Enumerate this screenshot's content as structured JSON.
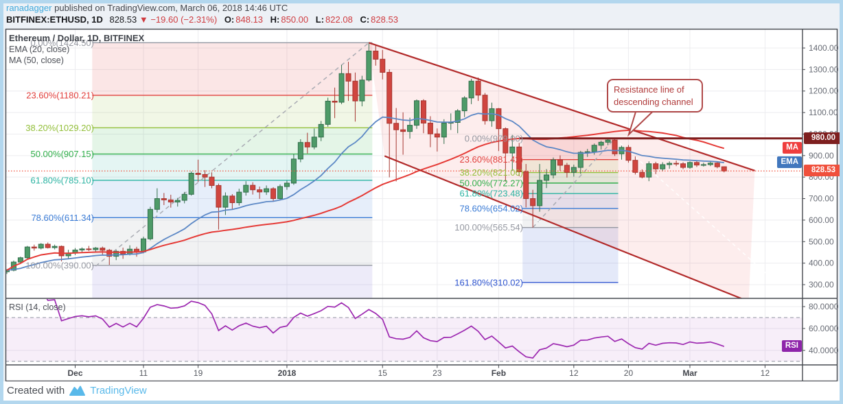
{
  "header": {
    "author": "ranadagger",
    "published_text": " published on TradingView.com, March 06, 2018 14:46 UTC",
    "symbol": "BITFINEX:ETHUSD, 1D",
    "last": "828.53",
    "change": "▼ −19.60 (−2.31%)",
    "ohlc": [
      {
        "label": "O:",
        "value": "848.13"
      },
      {
        "label": "H:",
        "value": "850.00"
      },
      {
        "label": "L:",
        "value": "822.08"
      },
      {
        "label": "C:",
        "value": "828.53"
      }
    ]
  },
  "legend": {
    "title": "Ethereum / Dollar, 1D, BITFINEX",
    "ema": "EMA (20, close)",
    "ma": "MA (50, close)"
  },
  "rsi_legend": "RSI (14, close)",
  "annotation": {
    "line1": "Resistance line of",
    "line2": "descending channel"
  },
  "axis_badges": {
    "ma": "MA",
    "ema": "EMA",
    "rsi": "RSI",
    "price_line": "980.00",
    "last_price": "828.53"
  },
  "footer": {
    "created_with": "Created with",
    "brand": "TradingView"
  },
  "colors": {
    "up_fill": "#4e9b68",
    "up_stroke": "#336e4c",
    "down_fill": "#d0453f",
    "down_stroke": "#a63630",
    "ema_line": "#5b87c5",
    "ma_line": "#e53935",
    "channel_line": "#b22a2a",
    "channel_fill": "rgba(239,83,80,0.10)",
    "ray_980": "#7e1f1f",
    "last_price_line": "#f1523f",
    "rsi_line": "#9c27b0",
    "rsi_band_fill": "rgba(156,39,176,0.08)",
    "grid": "#ececef",
    "frame": "#474a50",
    "gray_dash": "#a9abb3",
    "white_dash": "rgba(255,255,255,0.85)",
    "fib_ext_band": "#6a5acd"
  },
  "chart_data": {
    "type": "candlestick",
    "symbol": "BITFINEX:ETHUSD",
    "interval": "1D",
    "start_date": "2017-11-21",
    "end_date": "2018-03-06",
    "price_axis": {
      "ticks": [
        1400,
        1300,
        1200,
        1100,
        1000,
        900,
        800,
        700,
        600,
        500,
        400,
        300
      ],
      "ylim": [
        240,
        1489
      ]
    },
    "x_ticks": [
      {
        "label": "Dec",
        "index": 10,
        "major": true
      },
      {
        "label": "11",
        "index": 20,
        "major": false
      },
      {
        "label": "19",
        "index": 28,
        "major": false
      },
      {
        "label": "2018",
        "index": 41,
        "major": true
      },
      {
        "label": "15",
        "index": 55,
        "major": false
      },
      {
        "label": "23",
        "index": 63,
        "major": false
      },
      {
        "label": "Feb",
        "index": 72,
        "major": true
      },
      {
        "label": "12",
        "index": 83,
        "major": false
      },
      {
        "label": "20",
        "index": 91,
        "major": false
      },
      {
        "label": "Mar",
        "index": 100,
        "major": true
      },
      {
        "label": "12",
        "index": 111,
        "major": false
      }
    ],
    "candles": [
      [
        360,
        372,
        350,
        367
      ],
      [
        367,
        412,
        362,
        405
      ],
      [
        405,
        430,
        398,
        425
      ],
      [
        425,
        480,
        420,
        475
      ],
      [
        475,
        486,
        458,
        470
      ],
      [
        470,
        493,
        464,
        488
      ],
      [
        488,
        496,
        468,
        472
      ],
      [
        472,
        486,
        464,
        478
      ],
      [
        478,
        482,
        408,
        434
      ],
      [
        434,
        462,
        420,
        447
      ],
      [
        447,
        470,
        438,
        461
      ],
      [
        461,
        473,
        450,
        466
      ],
      [
        466,
        480,
        456,
        463
      ],
      [
        463,
        475,
        452,
        470
      ],
      [
        470,
        477,
        440,
        460
      ],
      [
        460,
        466,
        392,
        432
      ],
      [
        432,
        461,
        414,
        455
      ],
      [
        455,
        472,
        420,
        442
      ],
      [
        442,
        483,
        436,
        465
      ],
      [
        465,
        476,
        430,
        452
      ],
      [
        452,
        523,
        446,
        513
      ],
      [
        513,
        662,
        506,
        650
      ],
      [
        650,
        748,
        636,
        700
      ],
      [
        700,
        726,
        670,
        694
      ],
      [
        694,
        718,
        658,
        684
      ],
      [
        684,
        703,
        663,
        692
      ],
      [
        692,
        731,
        678,
        720
      ],
      [
        720,
        826,
        714,
        818
      ],
      [
        818,
        881,
        778,
        812
      ],
      [
        812,
        832,
        754,
        800
      ],
      [
        800,
        822,
        748,
        761
      ],
      [
        761,
        770,
        556,
        660
      ],
      [
        660,
        729,
        624,
        712
      ],
      [
        712,
        721,
        649,
        681
      ],
      [
        681,
        746,
        668,
        730
      ],
      [
        730,
        781,
        714,
        762
      ],
      [
        762,
        776,
        719,
        741
      ],
      [
        741,
        756,
        699,
        731
      ],
      [
        731,
        761,
        717,
        746
      ],
      [
        746,
        753,
        689,
        700
      ],
      [
        700,
        766,
        694,
        756
      ],
      [
        756,
        783,
        741,
        772
      ],
      [
        772,
        906,
        764,
        884
      ],
      [
        884,
        976,
        869,
        961
      ],
      [
        961,
        1006,
        910,
        940
      ],
      [
        940,
        1026,
        929,
        986
      ],
      [
        986,
        1061,
        967,
        1045
      ],
      [
        1045,
        1169,
        1034,
        1153
      ],
      [
        1153,
        1216,
        1074,
        1148
      ],
      [
        1148,
        1321,
        1139,
        1281
      ],
      [
        1281,
        1336,
        1154,
        1246
      ],
      [
        1246,
        1286,
        1058,
        1154
      ],
      [
        1154,
        1271,
        1129,
        1251
      ],
      [
        1251,
        1424.5,
        1244,
        1386
      ],
      [
        1386,
        1416,
        1318,
        1348
      ],
      [
        1348,
        1391,
        1254,
        1287
      ],
      [
        1287,
        1301,
        799,
        1050
      ],
      [
        1050,
        1121,
        780,
        1020
      ],
      [
        1020,
        1101,
        904,
        1012
      ],
      [
        1012,
        1076,
        979,
        1041
      ],
      [
        1041,
        1161,
        1024,
        1155
      ],
      [
        1155,
        1162,
        1004,
        1051
      ],
      [
        1051,
        1083,
        939,
        1001
      ],
      [
        1001,
        1026,
        919,
        986
      ],
      [
        986,
        1069,
        954,
        1051
      ],
      [
        1051,
        1096,
        1019,
        1054
      ],
      [
        1054,
        1116,
        1004,
        1108
      ],
      [
        1108,
        1176,
        1079,
        1168
      ],
      [
        1168,
        1257,
        1139,
        1246
      ],
      [
        1246,
        1263,
        1154,
        1181
      ],
      [
        1181,
        1191,
        1044,
        1062
      ],
      [
        1062,
        1146,
        1034,
        1118
      ],
      [
        1118,
        1121,
        921,
        1025
      ],
      [
        1025,
        1031,
        779,
        912
      ],
      [
        912,
        996,
        829,
        940
      ],
      [
        940,
        959,
        804,
        825
      ],
      [
        825,
        861,
        659,
        700
      ],
      [
        700,
        741,
        565,
        667
      ],
      [
        667,
        861,
        639,
        785
      ],
      [
        785,
        837,
        749,
        810
      ],
      [
        810,
        891,
        794,
        880
      ],
      [
        880,
        901,
        829,
        855
      ],
      [
        855,
        866,
        798,
        822
      ],
      [
        822,
        858,
        802,
        845
      ],
      [
        845,
        922,
        815,
        915
      ],
      [
        915,
        931,
        894,
        918
      ],
      [
        918,
        956,
        904,
        948
      ],
      [
        948,
        969,
        928,
        962
      ],
      [
        962,
        979,
        948,
        972
      ],
      [
        972,
        979,
        898,
        908
      ],
      [
        908,
        946,
        881,
        938
      ],
      [
        938,
        949,
        867,
        878
      ],
      [
        878,
        896,
        812,
        822
      ],
      [
        822,
        836,
        794,
        800
      ],
      [
        800,
        873,
        781,
        862
      ],
      [
        862,
        871,
        814,
        838
      ],
      [
        838,
        869,
        827,
        858
      ],
      [
        858,
        873,
        839,
        864
      ],
      [
        864,
        877,
        851,
        862
      ],
      [
        862,
        869,
        837,
        845
      ],
      [
        845,
        873,
        839,
        868
      ],
      [
        868,
        875,
        847,
        856
      ],
      [
        856,
        867,
        849,
        858
      ],
      [
        858,
        873,
        851,
        865
      ],
      [
        865,
        871,
        841,
        848
      ],
      [
        848.13,
        850,
        822.08,
        828.53
      ]
    ],
    "overlays": {
      "ema_period": 20,
      "ma_period": 50
    },
    "rsi": {
      "period": 14,
      "ticks": [
        80,
        60,
        40
      ],
      "bands": [
        70,
        30
      ]
    },
    "fib_retracements": [
      {
        "start_index": 13,
        "end_index": 53,
        "label_x": 137,
        "levels": [
          {
            "label": "0.00%(1424.50)",
            "value": 1424.5,
            "color": "#9598a1"
          },
          {
            "label": "23.60%(1180.21)",
            "value": 1180.21,
            "color": "#e13f3c"
          },
          {
            "label": "38.20%(1029.20)",
            "value": 1029.2,
            "color": "#93bf3b"
          },
          {
            "label": "50.00%(907.15)",
            "value": 907.15,
            "color": "#2fae49"
          },
          {
            "label": "61.80%(785.10)",
            "value": 785.1,
            "color": "#2bb3a2"
          },
          {
            "label": "78.60%(611.34)",
            "value": 611.34,
            "color": "#3a7bd5"
          },
          {
            "label": "100.00%(390.00)",
            "value": 390,
            "color": "#9598a1"
          }
        ],
        "extend_below_to_price": 238
      },
      {
        "start_index": 76,
        "end_index": 89,
        "label_x": 762,
        "levels": [
          {
            "label": "0.00%(979.00)",
            "value": 979,
            "color": "#9598a1"
          },
          {
            "label": "23.60%(881.42)",
            "value": 881.42,
            "color": "#e13f3c"
          },
          {
            "label": "38.20%(821.06)",
            "value": 821.06,
            "color": "#93bf3b"
          },
          {
            "label": "50.00%(772.27)",
            "value": 772.27,
            "color": "#2fae49"
          },
          {
            "label": "61.80%(723.48)",
            "value": 723.48,
            "color": "#2bb3a2"
          },
          {
            "label": "78.60%(654.02)",
            "value": 654.02,
            "color": "#3a7bd5"
          },
          {
            "label": "100.00%(565.54)",
            "value": 565.54,
            "color": "#9598a1"
          },
          {
            "label": "161.80%(310.02)",
            "value": 310.02,
            "color": "#2f55cf"
          }
        ],
        "extend_below_to_price": null
      }
    ],
    "channel": {
      "upper": {
        "i1": 53,
        "p1": 1424.5,
        "i2": 109.5,
        "p2": 830
      },
      "lower": {
        "i1": 55.3,
        "p1": 898,
        "i2": 108.6,
        "p2": 222
      }
    },
    "gray_dashed_lines": [
      {
        "i1": 13,
        "p1": 386,
        "i2": 53,
        "p2": 1424.5
      },
      {
        "i1": 77,
        "p1": 565.5,
        "i2": 89,
        "p2": 979
      }
    ],
    "white_dashed_lines": [
      {
        "i1": 55.5,
        "p1": 905,
        "i2": 78.5,
        "p2": 588
      },
      {
        "i1": 89,
        "p1": 979,
        "i2": 113,
        "p2": 300
      }
    ],
    "horizontal_ray": {
      "price": 980,
      "from_index": 75,
      "label": "980.00"
    },
    "last_price": {
      "price": 828.53,
      "label": "828.53"
    }
  }
}
